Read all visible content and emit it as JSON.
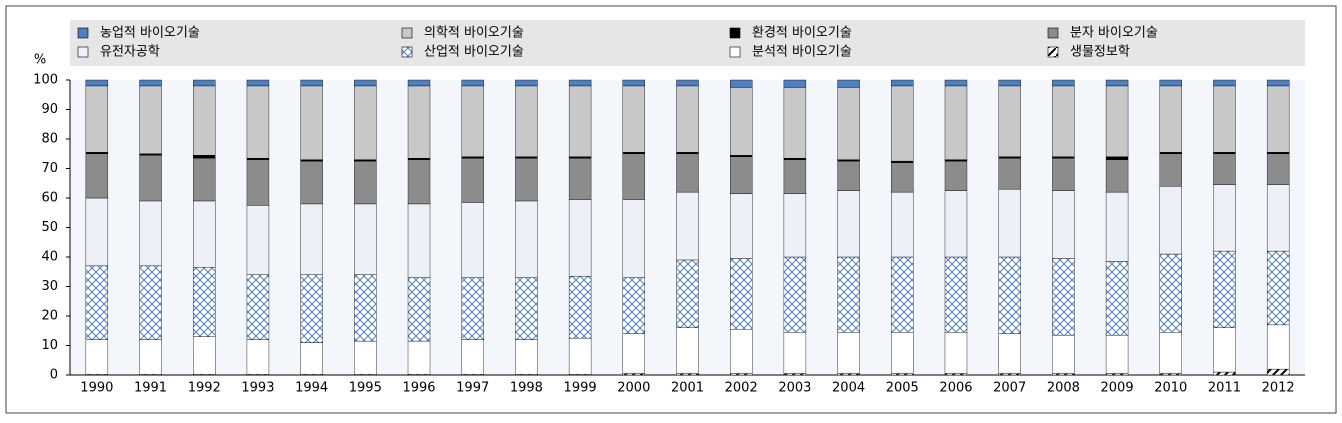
{
  "chart_data": {
    "type": "stacked_bar",
    "y_label": "%",
    "categories": [
      "1990",
      "1991",
      "1992",
      "1993",
      "1994",
      "1995",
      "1996",
      "1997",
      "1998",
      "1999",
      "2000",
      "2001",
      "2002",
      "2003",
      "2004",
      "2005",
      "2006",
      "2007",
      "2008",
      "2009",
      "2010",
      "2011",
      "2012"
    ],
    "ylim": [
      0,
      100
    ],
    "yticks": [
      0,
      10,
      20,
      30,
      40,
      50,
      60,
      70,
      80,
      90,
      100
    ],
    "legend_position": "top",
    "series": [
      {
        "name": "농업적 바이오기술",
        "color": "#4f7fbf",
        "values": [
          2,
          2,
          2,
          2,
          2,
          2,
          2,
          2,
          2,
          2,
          2,
          2,
          2.5,
          2.5,
          2.5,
          2,
          2,
          2,
          2,
          2,
          2,
          2,
          2
        ]
      },
      {
        "name": "의학적 바이오기술",
        "color": "#c8c8c8",
        "values": [
          22.5,
          23,
          23.5,
          24.5,
          25,
          25,
          24.5,
          24,
          24,
          24,
          22.5,
          22.5,
          23,
          24,
          24.5,
          25.5,
          25,
          24,
          24,
          24,
          22.5,
          22.5,
          22.5
        ]
      },
      {
        "name": "환경적 바이오기술",
        "color": "#000000",
        "values": [
          0.5,
          0.5,
          1,
          0.5,
          0.5,
          0.5,
          0.5,
          0.5,
          0.5,
          0.5,
          0.5,
          0.5,
          0.5,
          0.5,
          0.5,
          0.5,
          0.5,
          0.5,
          0.5,
          1,
          0.5,
          0.5,
          0.5
        ]
      },
      {
        "name": "분자 바이오기술",
        "color": "#8c8c8c",
        "values": [
          15,
          15.5,
          14.5,
          15.5,
          14.5,
          14.5,
          15,
          15,
          14.5,
          14,
          15.5,
          13,
          12.5,
          11.5,
          10,
          10,
          10,
          10.5,
          11,
          11,
          11,
          10.5,
          10.5
        ]
      },
      {
        "name": "유전자공학",
        "color": "#eef0f8",
        "values": [
          23,
          22,
          22.5,
          23.5,
          24,
          24,
          25,
          25.5,
          26,
          26,
          26.5,
          23,
          22,
          21.5,
          22.5,
          22,
          22.5,
          23,
          23,
          23.5,
          23,
          22.5,
          22.5
        ]
      },
      {
        "name": "산업적 바이오기술",
        "color": "#4f7fbf",
        "hatch": "cross",
        "values": [
          25,
          25,
          23.5,
          22,
          23,
          22.5,
          21.5,
          21,
          21,
          21,
          19,
          23,
          24,
          25.5,
          25.5,
          25.5,
          25.5,
          26,
          26,
          25,
          26.5,
          26,
          25
        ]
      },
      {
        "name": "분석적 바이오기술",
        "color": "#ffffff",
        "values": [
          11.8,
          11.8,
          12.8,
          11.8,
          10.8,
          11.3,
          11.3,
          11.8,
          11.8,
          12.3,
          13.5,
          15.5,
          15,
          14,
          14,
          14,
          14,
          13.5,
          13,
          13,
          14,
          15,
          15
        ]
      },
      {
        "name": "생물정보학",
        "color": "#000000",
        "hatch": "diagonal",
        "values": [
          0.2,
          0.2,
          0.2,
          0.2,
          0.2,
          0.2,
          0.2,
          0.2,
          0.2,
          0.2,
          0.5,
          0.5,
          0.5,
          0.5,
          0.5,
          0.5,
          0.5,
          0.5,
          0.5,
          0.5,
          0.5,
          1,
          2
        ]
      }
    ]
  }
}
